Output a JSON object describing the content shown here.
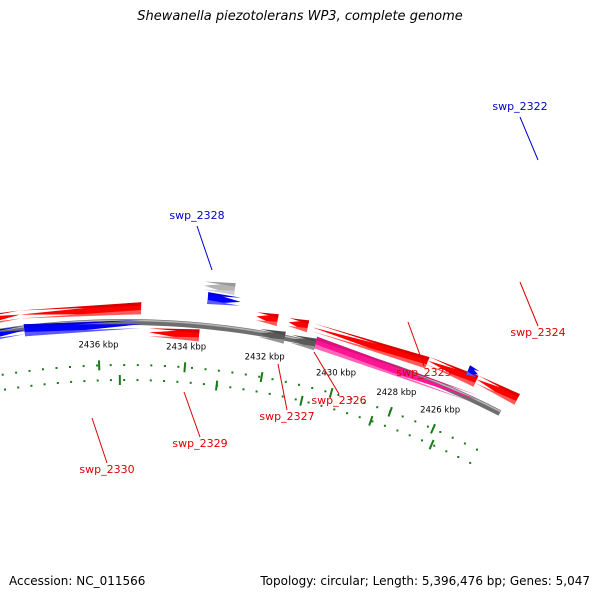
{
  "title": "Shewanella piezotolerans WP3, complete genome",
  "footer": {
    "accession": "Accession: NC_011566",
    "topology": "Topology: circular; Length: 5,396,476 bp; Genes: 5,047"
  },
  "colors": {
    "backbone": "#7a7a7a",
    "ruler_tick": "#1a7a1a",
    "gene_red": "#ff0000",
    "gene_blue": "#0000ff",
    "gene_pink": "#ff1493",
    "gene_grey_dark": "#5a5a5a",
    "gene_grey_light": "#b4b4b4",
    "label_red": "#dd0000",
    "label_blue": "#0000cc"
  },
  "ruler_labels": [
    "2426 kbp",
    "2428 kbp",
    "2430 kbp",
    "2432 kbp",
    "2434 kbp",
    "2436 kbp"
  ],
  "gene_labels": [
    {
      "name": "swp_2322",
      "color": "blue"
    },
    {
      "name": "swp_2324",
      "color": "red"
    },
    {
      "name": "swp_2325",
      "color": "red"
    },
    {
      "name": "swp_2326",
      "color": "red"
    },
    {
      "name": "swp_2327",
      "color": "red"
    },
    {
      "name": "swp_2328",
      "color": "blue"
    },
    {
      "name": "swp_2329",
      "color": "red"
    },
    {
      "name": "swp_2330",
      "color": "red"
    }
  ]
}
